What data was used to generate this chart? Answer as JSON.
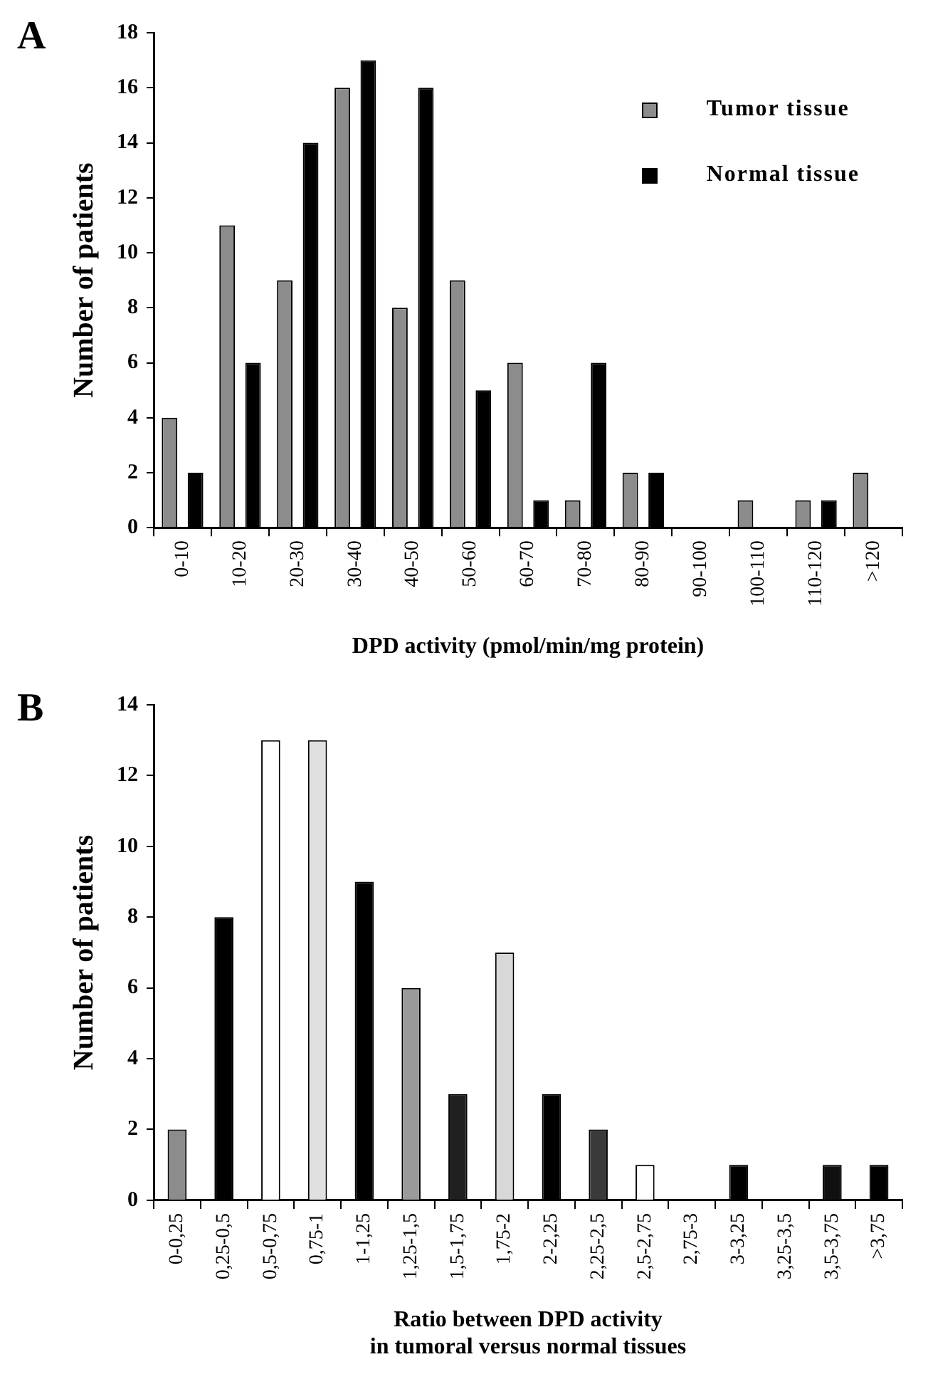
{
  "chart_data": [
    {
      "type": "bar",
      "title": "A",
      "xlabel": "DPD activity (pmol/min/mg protein)",
      "ylabel": "Number of patients",
      "categories": [
        "0-10",
        "10-20",
        "20-30",
        "30-40",
        "40-50",
        "50-60",
        "60-70",
        "70-80",
        "80-90",
        "90-100",
        "100-110",
        "110-120",
        ">120"
      ],
      "series": [
        {
          "name": "Tumor tissue",
          "color": "#8c8c8c",
          "values": [
            4,
            11,
            9,
            16,
            8,
            9,
            6,
            1,
            2,
            0,
            1,
            1,
            2
          ]
        },
        {
          "name": "Normal tissue",
          "color": "#000000",
          "values": [
            2,
            6,
            14,
            17,
            16,
            5,
            1,
            6,
            2,
            0,
            0,
            1,
            0
          ]
        }
      ],
      "ylim": [
        0,
        18
      ],
      "yticks": [
        0,
        2,
        4,
        6,
        8,
        10,
        12,
        14,
        16,
        18
      ],
      "grid": false,
      "legend": "top right"
    },
    {
      "type": "bar",
      "title": "B",
      "xlabel": "Ratio between DPD activity\nin tumoral versus normal tissues",
      "ylabel": "Number of patients",
      "categories": [
        "0-0,25",
        "0,25-0,5",
        "0,5-0,75",
        "0,75-1",
        "1-1,25",
        "1,25-1,5",
        "1,5-1,75",
        "1,75-2",
        "2-2,25",
        "2,25-2,5",
        "2,5-2,75",
        "2,75-3",
        "3-3,25",
        "3,25-3,5",
        "3,5-3,75",
        ">3,75"
      ],
      "values": [
        2,
        8,
        13,
        13,
        9,
        6,
        3,
        7,
        3,
        2,
        1,
        0,
        1,
        0,
        1,
        1
      ],
      "colors": [
        "#8c8c8c",
        "#000000",
        "#ffffff",
        "#e0e0e0",
        "#000000",
        "#9a9a9a",
        "#202020",
        "#d8d8d8",
        "#000000",
        "#3a3a3a",
        "#ffffff",
        "#000000",
        "#000000",
        "#000000",
        "#101010",
        "#000000"
      ],
      "ylim": [
        0,
        14
      ],
      "yticks": [
        0,
        2,
        4,
        6,
        8,
        10,
        12,
        14
      ],
      "grid": false
    }
  ]
}
